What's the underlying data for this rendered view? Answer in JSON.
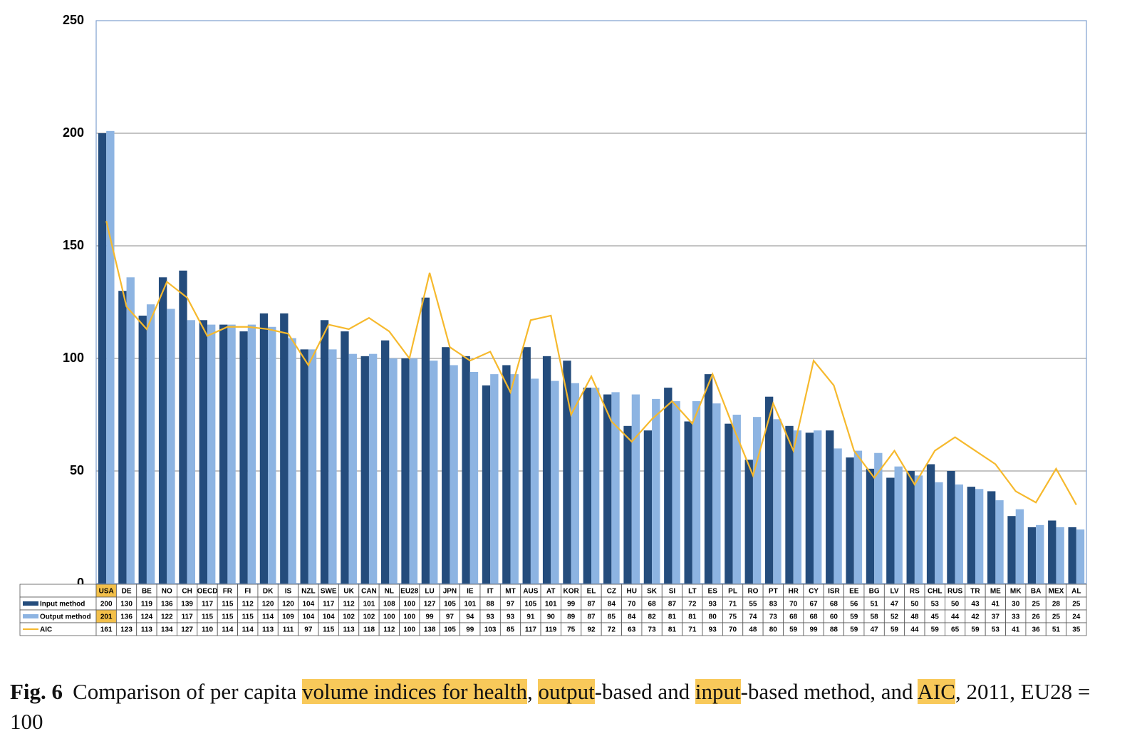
{
  "chart_data": {
    "type": "bar",
    "categories": [
      "USA",
      "DE",
      "BE",
      "NO",
      "CH",
      "OECD",
      "FR",
      "FI",
      "DK",
      "IS",
      "NZL",
      "SWE",
      "UK",
      "CAN",
      "NL",
      "EU28",
      "LU",
      "JPN",
      "IE",
      "IT",
      "MT",
      "AUS",
      "AT",
      "KOR",
      "EL",
      "CZ",
      "HU",
      "SK",
      "SI",
      "LT",
      "ES",
      "PL",
      "RO",
      "PT",
      "HR",
      "CY",
      "ISR",
      "EE",
      "BG",
      "LV",
      "RS",
      "CHL",
      "RUS",
      "TR",
      "ME",
      "MK",
      "BA",
      "MEX",
      "AL"
    ],
    "series": [
      {
        "name": "Input method",
        "type": "bar",
        "color": "#244c7c",
        "values": [
          200,
          130,
          119,
          136,
          139,
          117,
          115,
          112,
          120,
          120,
          104,
          117,
          112,
          101,
          108,
          100,
          127,
          105,
          101,
          88,
          97,
          105,
          101,
          99,
          87,
          84,
          70,
          68,
          87,
          72,
          93,
          71,
          55,
          83,
          70,
          67,
          68,
          56,
          51,
          47,
          50,
          53,
          50,
          43,
          41,
          30,
          25,
          28,
          25
        ]
      },
      {
        "name": "Output method",
        "type": "bar",
        "color": "#8db4e2",
        "values": [
          201,
          136,
          124,
          122,
          117,
          115,
          115,
          115,
          114,
          109,
          104,
          104,
          102,
          102,
          100,
          100,
          99,
          97,
          94,
          93,
          93,
          91,
          90,
          89,
          87,
          85,
          84,
          82,
          81,
          81,
          80,
          75,
          74,
          73,
          68,
          68,
          60,
          59,
          58,
          52,
          48,
          45,
          44,
          42,
          37,
          33,
          26,
          25,
          24
        ]
      },
      {
        "name": "AIC",
        "type": "line",
        "color": "#f6b92d",
        "values": [
          161,
          123,
          113,
          134,
          127,
          110,
          114,
          114,
          113,
          111,
          97,
          115,
          113,
          118,
          112,
          100,
          138,
          105,
          99,
          103,
          85,
          117,
          119,
          75,
          92,
          72,
          63,
          73,
          81,
          71,
          93,
          70,
          48,
          80,
          59,
          99,
          88,
          59,
          47,
          59,
          44,
          59,
          65,
          59,
          53,
          41,
          36,
          51,
          35
        ]
      }
    ],
    "ylim": [
      0,
      250
    ],
    "yticks": [
      0,
      50,
      100,
      150,
      200,
      250
    ],
    "grid": true,
    "highlighted_category_index": 0
  },
  "caption": {
    "label": "Fig. 6",
    "segments": [
      {
        "text": "Comparison of per capita ",
        "highlight": false
      },
      {
        "text": "volume indices for health",
        "highlight": true
      },
      {
        "text": ", ",
        "highlight": false
      },
      {
        "text": "output",
        "highlight": true
      },
      {
        "text": "-based and ",
        "highlight": false
      },
      {
        "text": "input",
        "highlight": true
      },
      {
        "text": "-based method, and ",
        "highlight": false
      },
      {
        "text": "AIC",
        "highlight": true
      },
      {
        "text": ", 2011, EU28 = 100",
        "highlight": false
      }
    ]
  }
}
